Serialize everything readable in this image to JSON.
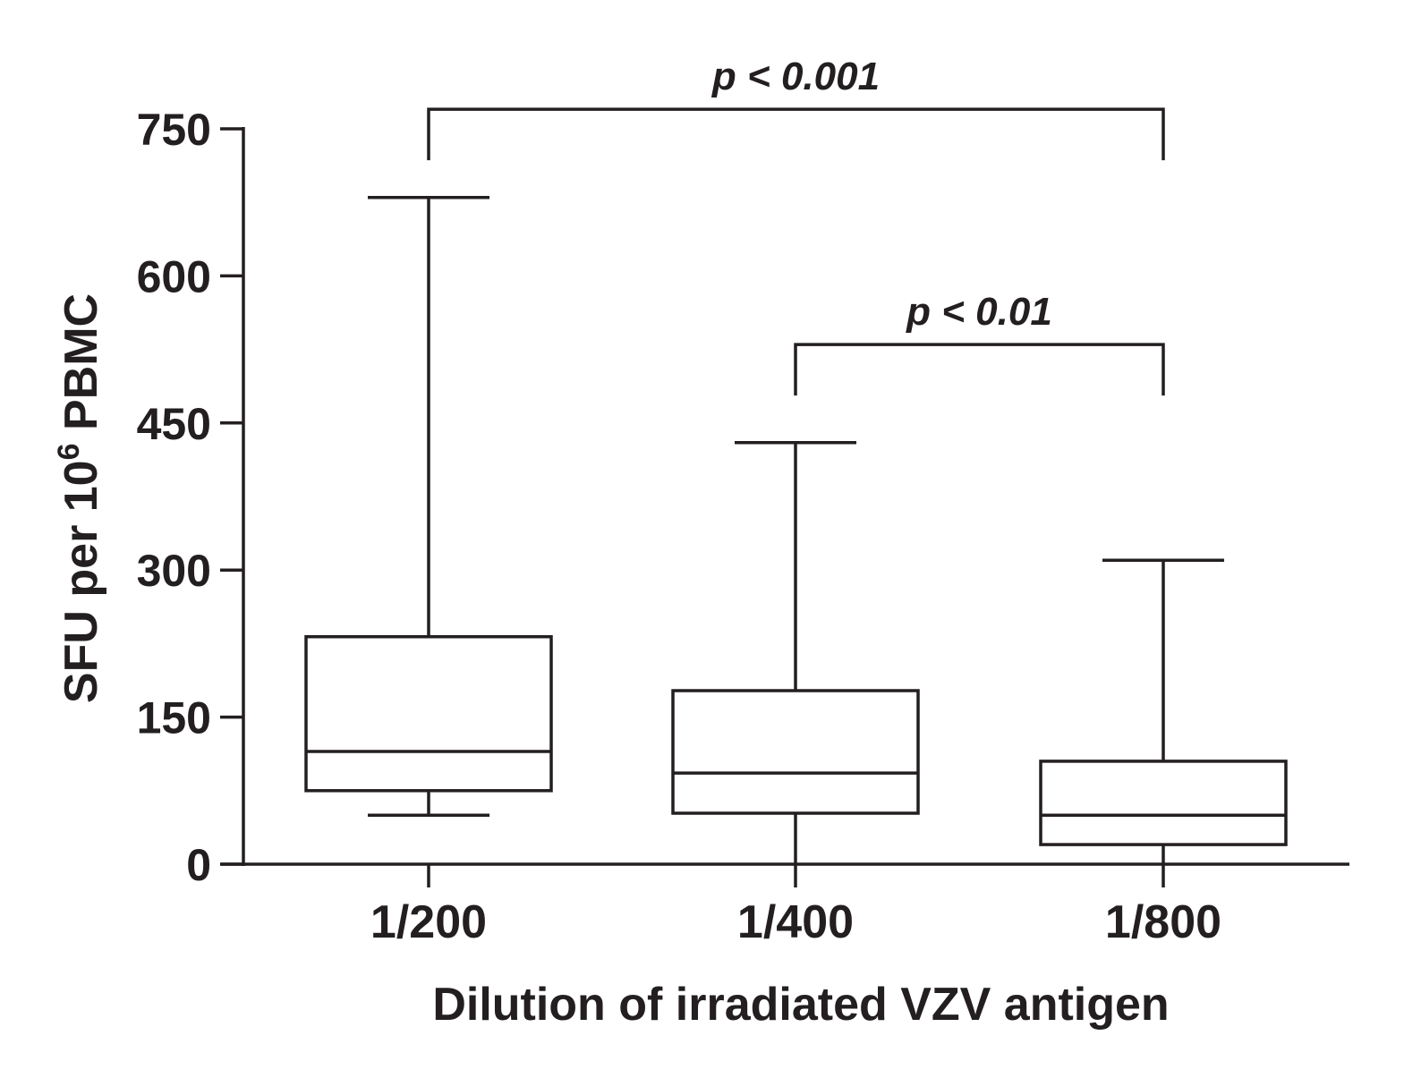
{
  "chart_data": {
    "type": "box",
    "xlabel": "Dilution of irradiated VZV antigen",
    "ylabel": {
      "prefix": "SFU per 10",
      "superscript": "6",
      "suffix": "PBMC"
    },
    "ylim": [
      0,
      750
    ],
    "yticks": [
      0,
      150,
      300,
      450,
      600,
      750
    ],
    "grid": false,
    "categories": [
      "1/200",
      "1/400",
      "1/800"
    ],
    "boxes": [
      {
        "category": "1/200",
        "min": 50,
        "q1": 75,
        "median": 115,
        "q3": 232,
        "max": 680
      },
      {
        "category": "1/400",
        "min": 0,
        "q1": 52,
        "median": 93,
        "q3": 177,
        "max": 430
      },
      {
        "category": "1/800",
        "min": 0,
        "q1": 20,
        "median": 50,
        "q3": 105,
        "max": 310
      }
    ],
    "annotations": [
      {
        "from": "1/200",
        "to": "1/800",
        "label": "p < 0.001",
        "bracket_y": 770,
        "leg_bottom": 718
      },
      {
        "from": "1/400",
        "to": "1/800",
        "label": "p < 0.01",
        "bracket_y": 530,
        "leg_bottom": 478
      }
    ]
  }
}
